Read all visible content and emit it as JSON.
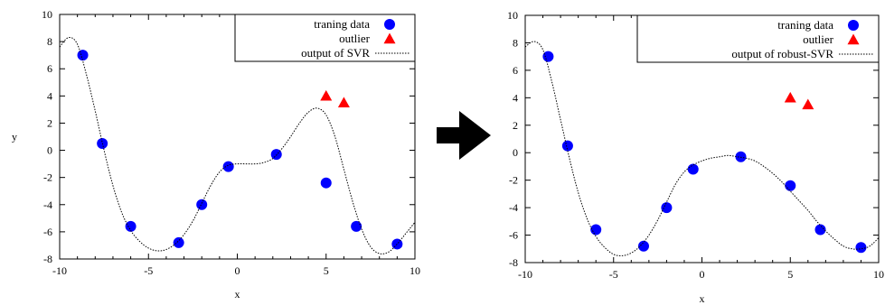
{
  "chart_data": [
    {
      "type": "scatter",
      "title": "",
      "xlabel": "x",
      "ylabel": "y",
      "xlim": [
        -10,
        10
      ],
      "ylim": [
        -8,
        10
      ],
      "xticks": [
        -10,
        -5,
        0,
        5,
        10
      ],
      "yticks": [
        -8,
        -6,
        -4,
        -2,
        0,
        2,
        4,
        6,
        8,
        10
      ],
      "grid": false,
      "legend_position": "top-right",
      "series": [
        {
          "name": "traning data",
          "marker": "circle",
          "color": "#0000ff",
          "x": [
            -8.7,
            -7.6,
            -6.0,
            -3.3,
            -2.0,
            -0.5,
            2.2,
            5.0,
            6.7,
            9.0
          ],
          "y": [
            7.0,
            0.5,
            -5.6,
            -6.8,
            -4.0,
            -1.2,
            -0.3,
            -2.4,
            -5.6,
            -6.9
          ]
        },
        {
          "name": "outlier",
          "marker": "triangle",
          "color": "#ff0000",
          "x": [
            5.0,
            6.0
          ],
          "y": [
            4.0,
            3.5
          ]
        },
        {
          "name": "output of SVR",
          "style": "dotted-line",
          "color": "#000000",
          "x": [
            -10,
            -9.5,
            -9.0,
            -8.5,
            -8.0,
            -7.5,
            -7.0,
            -6.5,
            -6.0,
            -5.5,
            -5.0,
            -4.5,
            -4.0,
            -3.5,
            -3.0,
            -2.5,
            -2.0,
            -1.5,
            -1.0,
            -0.5,
            0.0,
            0.5,
            1.0,
            1.5,
            2.0,
            2.5,
            3.0,
            3.5,
            4.0,
            4.5,
            5.0,
            5.5,
            6.0,
            6.5,
            7.0,
            7.5,
            8.0,
            8.5,
            9.0,
            9.5,
            10.0
          ],
          "y": [
            7.6,
            8.3,
            7.8,
            5.6,
            2.9,
            0.0,
            -2.6,
            -4.6,
            -5.9,
            -6.7,
            -7.2,
            -7.4,
            -7.3,
            -6.9,
            -6.2,
            -5.2,
            -3.9,
            -2.6,
            -1.6,
            -1.1,
            -1.0,
            -1.0,
            -1.0,
            -0.9,
            -0.6,
            0.1,
            1.0,
            2.0,
            2.8,
            3.1,
            2.6,
            1.0,
            -1.4,
            -3.8,
            -5.8,
            -7.1,
            -7.6,
            -7.5,
            -6.9,
            -6.1,
            -5.3
          ]
        }
      ]
    },
    {
      "type": "scatter",
      "title": "",
      "xlabel": "x",
      "ylabel": "",
      "xlim": [
        -10,
        10
      ],
      "ylim": [
        -8,
        10
      ],
      "xticks": [
        -10,
        -5,
        0,
        5,
        10
      ],
      "yticks": [
        -8,
        -6,
        -4,
        -2,
        0,
        2,
        4,
        6,
        8,
        10
      ],
      "grid": false,
      "legend_position": "top-right",
      "series": [
        {
          "name": "traning data",
          "marker": "circle",
          "color": "#0000ff",
          "x": [
            -8.7,
            -7.6,
            -6.0,
            -3.3,
            -2.0,
            -0.5,
            2.2,
            5.0,
            6.7,
            9.0
          ],
          "y": [
            7.0,
            0.5,
            -5.6,
            -6.8,
            -4.0,
            -1.2,
            -0.3,
            -2.4,
            -5.6,
            -6.9
          ]
        },
        {
          "name": "outlier",
          "marker": "triangle",
          "color": "#ff0000",
          "x": [
            5.0,
            6.0
          ],
          "y": [
            4.0,
            3.5
          ]
        },
        {
          "name": "output of robust-SVR",
          "style": "dotted-line",
          "color": "#000000",
          "x": [
            -10,
            -9.5,
            -9.0,
            -8.5,
            -8.0,
            -7.5,
            -7.0,
            -6.5,
            -6.0,
            -5.5,
            -5.0,
            -4.5,
            -4.0,
            -3.5,
            -3.0,
            -2.5,
            -2.0,
            -1.5,
            -1.0,
            -0.5,
            0.0,
            0.5,
            1.0,
            1.5,
            2.0,
            2.5,
            3.0,
            3.5,
            4.0,
            4.5,
            5.0,
            5.5,
            6.0,
            6.5,
            7.0,
            7.5,
            8.0,
            8.5,
            9.0,
            9.5,
            10.0
          ],
          "y": [
            7.7,
            8.1,
            7.5,
            5.2,
            2.4,
            -0.4,
            -2.9,
            -4.8,
            -6.1,
            -6.9,
            -7.4,
            -7.5,
            -7.3,
            -6.8,
            -6.0,
            -4.9,
            -3.6,
            -2.3,
            -1.4,
            -0.9,
            -0.6,
            -0.4,
            -0.3,
            -0.2,
            -0.3,
            -0.4,
            -0.6,
            -1.0,
            -1.5,
            -2.1,
            -2.8,
            -3.5,
            -4.2,
            -5.0,
            -5.7,
            -6.3,
            -6.8,
            -7.0,
            -7.0,
            -6.8,
            -6.2
          ]
        }
      ]
    }
  ],
  "arrow": {
    "icon": "right-arrow-icon",
    "color": "#000000"
  }
}
